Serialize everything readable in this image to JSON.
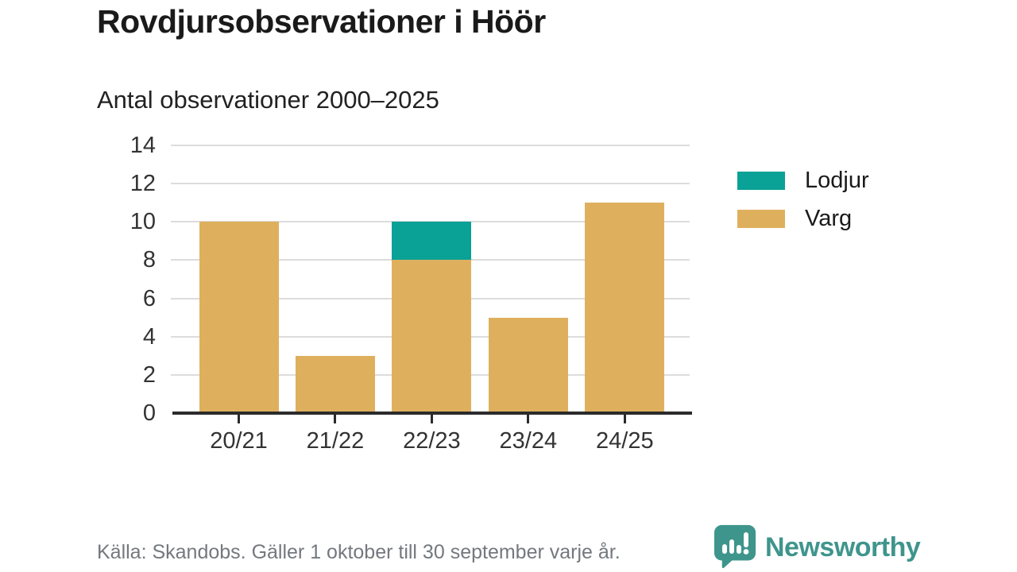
{
  "header": {
    "title": "Rovdjursobservationer i Höör",
    "subtitle": "Antal observationer 2000–2025"
  },
  "chart_data": {
    "type": "bar",
    "stacked": true,
    "title": "Rovdjursobservationer i Höör",
    "subtitle": "Antal observationer 2000–2025",
    "categories": [
      "20/21",
      "21/22",
      "22/23",
      "23/24",
      "24/25"
    ],
    "series": [
      {
        "name": "Lodjur",
        "color": "#0aa196",
        "values": [
          0,
          0,
          2,
          0,
          0
        ]
      },
      {
        "name": "Varg",
        "color": "#deb05e",
        "values": [
          10,
          3,
          8,
          5,
          11
        ]
      }
    ],
    "totals": [
      10,
      3,
      10,
      5,
      11
    ],
    "ylim": [
      0,
      14
    ],
    "yticks": [
      0,
      2,
      4,
      6,
      8,
      10,
      12,
      14
    ],
    "grid": true,
    "legend_position": "right",
    "colors": {
      "gridline": "#dcdcdc",
      "axis": "#2b2b2b",
      "tick_label": "#333333"
    }
  },
  "legend": {
    "items": [
      {
        "label": "Lodjur",
        "color": "#0aa196"
      },
      {
        "label": "Varg",
        "color": "#deb05e"
      }
    ]
  },
  "footer": {
    "source": "Källa: Skandobs. Gäller 1 oktober till 30 september varje år."
  },
  "branding": {
    "name": "Newsworthy",
    "color": "#3e958c",
    "icon": "newsworthy-speech-bubble-bar-chart-icon"
  }
}
